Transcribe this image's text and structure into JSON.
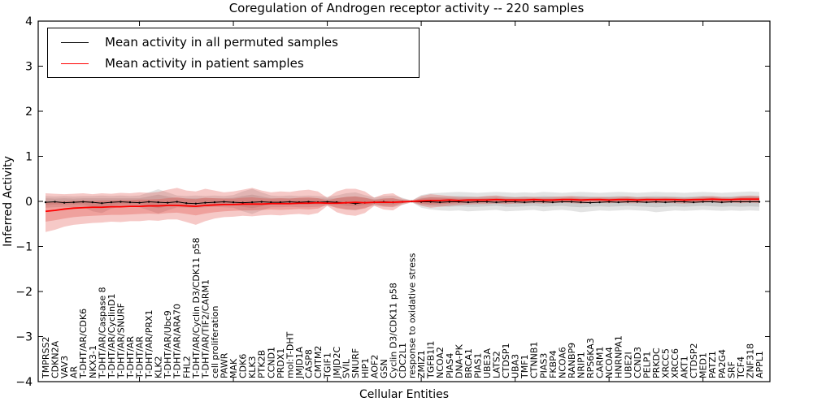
{
  "chart_data": {
    "type": "line",
    "title": "Coregulation of Androgen receptor activity -- 220 samples",
    "xlabel": "Cellular Entities",
    "ylabel": "Inferred Activity",
    "ylim": [
      -4,
      4
    ],
    "yticks": [
      4,
      3,
      2,
      1,
      0,
      -1,
      -2,
      -3,
      -4
    ],
    "x_major_tick_every": 10,
    "grid": false,
    "x_label_rotation": 90,
    "x_labels_inside_plot": true,
    "legend": {
      "position": "upper left",
      "entries": [
        {
          "label": "Mean activity in all permuted samples",
          "color": "#000000"
        },
        {
          "label": "Mean activity in patient samples",
          "color": "#ff0000"
        }
      ]
    },
    "colors": {
      "patient_line": "#ff0000",
      "permuted_line": "#000000",
      "patient_band": "rgba(222,45,38,0.28)",
      "permuted_band": "rgba(0,0,0,0.12)"
    },
    "categories": [
      "TMPRSS2",
      "CDKN2A",
      "VAV3",
      "AR",
      "T-DHT/AR/CDK6",
      "NKX3-1",
      "T-DHT/AR/Caspase 8",
      "T-DHT/AR/CyclinD1",
      "T-DHT/AR/SNURF",
      "T-DHT/AR",
      "T-DHT/AR",
      "T-DHT/AR/PRX1",
      "KLK2",
      "T-DHT/AR/Ubc9",
      "T-DHT/AR/ARA70",
      "FHL2",
      "T-DHT/AR/Cyclin D3/CDK11 p58",
      "T-DHT/AR/TIF2/CARM1",
      "cell proliferation",
      "PAWR",
      "MAK",
      "CDK6",
      "KLK3",
      "PTK2B",
      "CCND1",
      "PRDX1",
      "mol:T-DHT",
      "JMJD1A",
      "CASP8",
      "CMTM2",
      "TGIF1",
      "JMJD2C",
      "SVIL",
      "SNURF",
      "HIP1",
      "AOF2",
      "GSN",
      "Cyclin D3/CDK11 p58",
      "CDC2L1",
      "response to oxidative stress",
      "ZMIZ1",
      "TGFB1I1",
      "NCOA2",
      "PIAS4",
      "DNA-PK",
      "BRCA1",
      "PIAS1",
      "UBE3A",
      "LATS2",
      "CTDSP1",
      "UBA3",
      "TMF1",
      "CTNNB1",
      "PIAS3",
      "FKBP4",
      "NCOA6",
      "RANBP9",
      "NRIP1",
      "RPS6KA3",
      "CARM1",
      "NCOA4",
      "HNRNPA1",
      "UBE2I",
      "CCND3",
      "PELP1",
      "PRKDC",
      "XRCC5",
      "XRCC6",
      "AKT1",
      "CTDSP2",
      "MED1",
      "PATZ1",
      "PA2G4",
      "SRF",
      "TCF4",
      "ZNF318",
      "APPL1"
    ],
    "series": [
      {
        "name": "Mean activity in all permuted samples",
        "color": "#000000",
        "values": [
          -0.02,
          -0.01,
          -0.03,
          -0.02,
          -0.01,
          -0.02,
          -0.04,
          -0.02,
          -0.01,
          -0.02,
          -0.03,
          -0.01,
          -0.02,
          -0.03,
          -0.01,
          -0.04,
          -0.05,
          -0.03,
          -0.02,
          -0.01,
          -0.02,
          -0.03,
          -0.02,
          -0.01,
          -0.02,
          -0.02,
          -0.01,
          -0.02,
          -0.01,
          -0.02,
          -0.01,
          -0.02,
          -0.03,
          -0.05,
          -0.03,
          -0.02,
          -0.01,
          -0.02,
          -0.01,
          0.0,
          -0.01,
          -0.01,
          -0.02,
          -0.01,
          -0.01,
          -0.02,
          -0.01,
          -0.01,
          -0.02,
          -0.01,
          -0.01,
          -0.02,
          -0.01,
          -0.01,
          -0.02,
          -0.01,
          -0.01,
          -0.02,
          -0.03,
          -0.02,
          -0.01,
          -0.02,
          -0.01,
          -0.01,
          -0.02,
          -0.01,
          -0.02,
          -0.01,
          -0.01,
          -0.02,
          -0.01,
          -0.01,
          -0.02,
          -0.01,
          -0.01,
          -0.01,
          -0.01
        ]
      },
      {
        "name": "Mean activity in patient samples",
        "color": "#ff0000",
        "values": [
          -0.22,
          -0.2,
          -0.17,
          -0.15,
          -0.14,
          -0.13,
          -0.13,
          -0.12,
          -0.12,
          -0.11,
          -0.11,
          -0.1,
          -0.1,
          -0.09,
          -0.09,
          -0.1,
          -0.11,
          -0.09,
          -0.08,
          -0.07,
          -0.07,
          -0.06,
          -0.06,
          -0.06,
          -0.05,
          -0.05,
          -0.05,
          -0.04,
          -0.04,
          -0.03,
          -0.04,
          -0.04,
          -0.03,
          -0.02,
          -0.03,
          -0.02,
          -0.02,
          -0.02,
          -0.01,
          0.0,
          0.01,
          0.02,
          0.02,
          0.03,
          0.02,
          0.03,
          0.03,
          0.03,
          0.04,
          0.03,
          0.03,
          0.03,
          0.04,
          0.03,
          0.03,
          0.04,
          0.04,
          0.03,
          0.04,
          0.04,
          0.03,
          0.04,
          0.04,
          0.03,
          0.04,
          0.04,
          0.04,
          0.04,
          0.03,
          0.04,
          0.04,
          0.05,
          0.04,
          0.04,
          0.05,
          0.05,
          0.05
        ]
      }
    ],
    "bands": [
      {
        "name": "permuted-outer",
        "fill": "rgba(0,0,0,0.11)",
        "lo": [
          -0.14,
          -0.13,
          -0.12,
          -0.13,
          -0.12,
          -0.22,
          -0.26,
          -0.16,
          -0.12,
          -0.12,
          -0.13,
          -0.2,
          -0.27,
          -0.2,
          -0.13,
          -0.14,
          -0.15,
          -0.13,
          -0.12,
          -0.13,
          -0.14,
          -0.22,
          -0.28,
          -0.2,
          -0.13,
          -0.13,
          -0.12,
          -0.13,
          -0.13,
          -0.12,
          -0.1,
          -0.13,
          -0.18,
          -0.2,
          -0.14,
          -0.1,
          -0.12,
          -0.13,
          -0.08,
          -0.02,
          -0.14,
          -0.18,
          -0.2,
          -0.21,
          -0.2,
          -0.22,
          -0.21,
          -0.2,
          -0.19,
          -0.22,
          -0.21,
          -0.2,
          -0.19,
          -0.22,
          -0.2,
          -0.19,
          -0.21,
          -0.24,
          -0.22,
          -0.2,
          -0.21,
          -0.2,
          -0.19,
          -0.2,
          -0.21,
          -0.24,
          -0.22,
          -0.2,
          -0.21,
          -0.2,
          -0.19,
          -0.2,
          -0.21,
          -0.2,
          -0.21,
          -0.2,
          -0.21
        ],
        "hi": [
          0.12,
          0.11,
          0.12,
          0.11,
          0.12,
          0.12,
          0.13,
          0.12,
          0.13,
          0.12,
          0.13,
          0.2,
          0.27,
          0.2,
          0.13,
          0.12,
          0.13,
          0.12,
          0.13,
          0.12,
          0.14,
          0.22,
          0.28,
          0.2,
          0.13,
          0.12,
          0.13,
          0.12,
          0.13,
          0.12,
          0.1,
          0.13,
          0.18,
          0.2,
          0.14,
          0.09,
          0.12,
          0.13,
          0.08,
          0.02,
          0.14,
          0.18,
          0.19,
          0.2,
          0.21,
          0.2,
          0.19,
          0.2,
          0.21,
          0.2,
          0.19,
          0.2,
          0.19,
          0.21,
          0.2,
          0.19,
          0.2,
          0.21,
          0.2,
          0.19,
          0.2,
          0.21,
          0.2,
          0.19,
          0.2,
          0.21,
          0.2,
          0.2,
          0.19,
          0.2,
          0.21,
          0.2,
          0.19,
          0.2,
          0.21,
          0.22,
          0.21
        ]
      },
      {
        "name": "permuted-inner",
        "fill": "rgba(0,0,0,0.10)",
        "lo": [
          -0.08,
          -0.07,
          -0.07,
          -0.07,
          -0.07,
          -0.12,
          -0.14,
          -0.09,
          -0.07,
          -0.07,
          -0.07,
          -0.11,
          -0.15,
          -0.11,
          -0.07,
          -0.08,
          -0.08,
          -0.07,
          -0.07,
          -0.07,
          -0.08,
          -0.12,
          -0.15,
          -0.11,
          -0.07,
          -0.07,
          -0.07,
          -0.07,
          -0.07,
          -0.07,
          -0.06,
          -0.07,
          -0.1,
          -0.11,
          -0.08,
          -0.06,
          -0.07,
          -0.07,
          -0.04,
          -0.01,
          -0.08,
          -0.1,
          -0.11,
          -0.12,
          -0.11,
          -0.12,
          -0.12,
          -0.11,
          -0.1,
          -0.12,
          -0.12,
          -0.11,
          -0.1,
          -0.12,
          -0.11,
          -0.1,
          -0.12,
          -0.13,
          -0.12,
          -0.11,
          -0.12,
          -0.11,
          -0.1,
          -0.11,
          -0.12,
          -0.13,
          -0.12,
          -0.11,
          -0.12,
          -0.11,
          -0.1,
          -0.11,
          -0.12,
          -0.11,
          -0.12,
          -0.11,
          -0.12
        ],
        "hi": [
          0.07,
          0.06,
          0.07,
          0.06,
          0.07,
          0.07,
          0.07,
          0.07,
          0.07,
          0.07,
          0.07,
          0.11,
          0.15,
          0.11,
          0.07,
          0.07,
          0.07,
          0.07,
          0.07,
          0.07,
          0.08,
          0.12,
          0.15,
          0.11,
          0.07,
          0.07,
          0.07,
          0.07,
          0.07,
          0.07,
          0.06,
          0.07,
          0.1,
          0.11,
          0.08,
          0.05,
          0.07,
          0.07,
          0.04,
          0.01,
          0.08,
          0.1,
          0.1,
          0.11,
          0.12,
          0.11,
          0.1,
          0.11,
          0.12,
          0.11,
          0.1,
          0.11,
          0.1,
          0.12,
          0.11,
          0.1,
          0.11,
          0.12,
          0.11,
          0.1,
          0.11,
          0.12,
          0.11,
          0.1,
          0.11,
          0.12,
          0.11,
          0.11,
          0.1,
          0.11,
          0.12,
          0.11,
          0.1,
          0.11,
          0.12,
          0.12,
          0.12
        ]
      },
      {
        "name": "patient-outer",
        "fill": "rgba(222,45,38,0.26)",
        "lo": [
          -0.68,
          -0.63,
          -0.56,
          -0.52,
          -0.5,
          -0.48,
          -0.47,
          -0.45,
          -0.46,
          -0.44,
          -0.44,
          -0.42,
          -0.43,
          -0.4,
          -0.4,
          -0.46,
          -0.52,
          -0.44,
          -0.38,
          -0.35,
          -0.34,
          -0.32,
          -0.33,
          -0.31,
          -0.3,
          -0.31,
          -0.29,
          -0.28,
          -0.3,
          -0.26,
          -0.1,
          -0.24,
          -0.3,
          -0.32,
          -0.26,
          -0.1,
          -0.18,
          -0.2,
          -0.07,
          -0.02,
          -0.1,
          -0.14,
          -0.12,
          -0.1,
          -0.08,
          -0.07,
          -0.06,
          -0.06,
          -0.05,
          -0.06,
          -0.05,
          -0.05,
          -0.04,
          -0.05,
          -0.04,
          -0.03,
          -0.04,
          -0.05,
          -0.04,
          -0.03,
          -0.04,
          -0.03,
          -0.04,
          -0.04,
          -0.03,
          -0.04,
          -0.03,
          -0.04,
          -0.05,
          -0.04,
          -0.03,
          -0.02,
          -0.04,
          -0.03,
          -0.04,
          -0.03,
          -0.04
        ],
        "hi": [
          0.18,
          0.17,
          0.16,
          0.17,
          0.18,
          0.16,
          0.18,
          0.17,
          0.19,
          0.18,
          0.2,
          0.19,
          0.21,
          0.26,
          0.3,
          0.24,
          0.22,
          0.28,
          0.24,
          0.2,
          0.22,
          0.26,
          0.3,
          0.24,
          0.2,
          0.22,
          0.21,
          0.24,
          0.26,
          0.22,
          0.08,
          0.22,
          0.28,
          0.28,
          0.22,
          0.08,
          0.16,
          0.18,
          0.06,
          0.02,
          0.12,
          0.16,
          0.14,
          0.12,
          0.1,
          0.1,
          0.1,
          0.12,
          0.13,
          0.1,
          0.09,
          0.1,
          0.1,
          0.09,
          0.1,
          0.11,
          0.12,
          0.1,
          0.09,
          0.1,
          0.09,
          0.1,
          0.11,
          0.09,
          0.1,
          0.09,
          0.1,
          0.09,
          0.08,
          0.09,
          0.11,
          0.12,
          0.1,
          0.09,
          0.12,
          0.13,
          0.12
        ]
      },
      {
        "name": "patient-inner",
        "fill": "rgba(222,45,38,0.26)",
        "lo": [
          -0.45,
          -0.42,
          -0.38,
          -0.35,
          -0.33,
          -0.32,
          -0.31,
          -0.3,
          -0.3,
          -0.29,
          -0.28,
          -0.27,
          -0.28,
          -0.26,
          -0.25,
          -0.28,
          -0.31,
          -0.27,
          -0.24,
          -0.22,
          -0.21,
          -0.2,
          -0.2,
          -0.19,
          -0.18,
          -0.19,
          -0.18,
          -0.17,
          -0.18,
          -0.16,
          -0.07,
          -0.15,
          -0.18,
          -0.19,
          -0.16,
          -0.06,
          -0.11,
          -0.12,
          -0.04,
          -0.01,
          -0.05,
          -0.07,
          -0.06,
          -0.05,
          -0.04,
          -0.03,
          -0.03,
          -0.02,
          -0.02,
          -0.03,
          -0.02,
          -0.02,
          -0.01,
          -0.02,
          -0.01,
          -0.01,
          -0.01,
          -0.02,
          -0.01,
          -0.01,
          -0.02,
          -0.01,
          -0.01,
          -0.02,
          -0.01,
          -0.02,
          -0.01,
          -0.02,
          -0.02,
          -0.01,
          -0.01,
          0.0,
          -0.02,
          -0.01,
          -0.01,
          0.0,
          -0.01
        ],
        "hi": [
          -0.02,
          -0.01,
          0.0,
          0.01,
          0.02,
          0.01,
          0.02,
          0.02,
          0.03,
          0.03,
          0.04,
          0.04,
          0.05,
          0.07,
          0.09,
          0.06,
          0.05,
          0.08,
          0.07,
          0.06,
          0.06,
          0.08,
          0.09,
          0.07,
          0.06,
          0.07,
          0.06,
          0.08,
          0.09,
          0.07,
          0.02,
          0.07,
          0.1,
          0.11,
          0.08,
          0.03,
          0.06,
          0.07,
          0.02,
          0.01,
          0.06,
          0.09,
          0.08,
          0.07,
          0.06,
          0.06,
          0.06,
          0.07,
          0.08,
          0.06,
          0.06,
          0.06,
          0.07,
          0.06,
          0.06,
          0.07,
          0.08,
          0.06,
          0.06,
          0.07,
          0.06,
          0.07,
          0.08,
          0.06,
          0.07,
          0.06,
          0.07,
          0.06,
          0.06,
          0.06,
          0.08,
          0.09,
          0.07,
          0.06,
          0.09,
          0.1,
          0.09
        ]
      }
    ]
  }
}
